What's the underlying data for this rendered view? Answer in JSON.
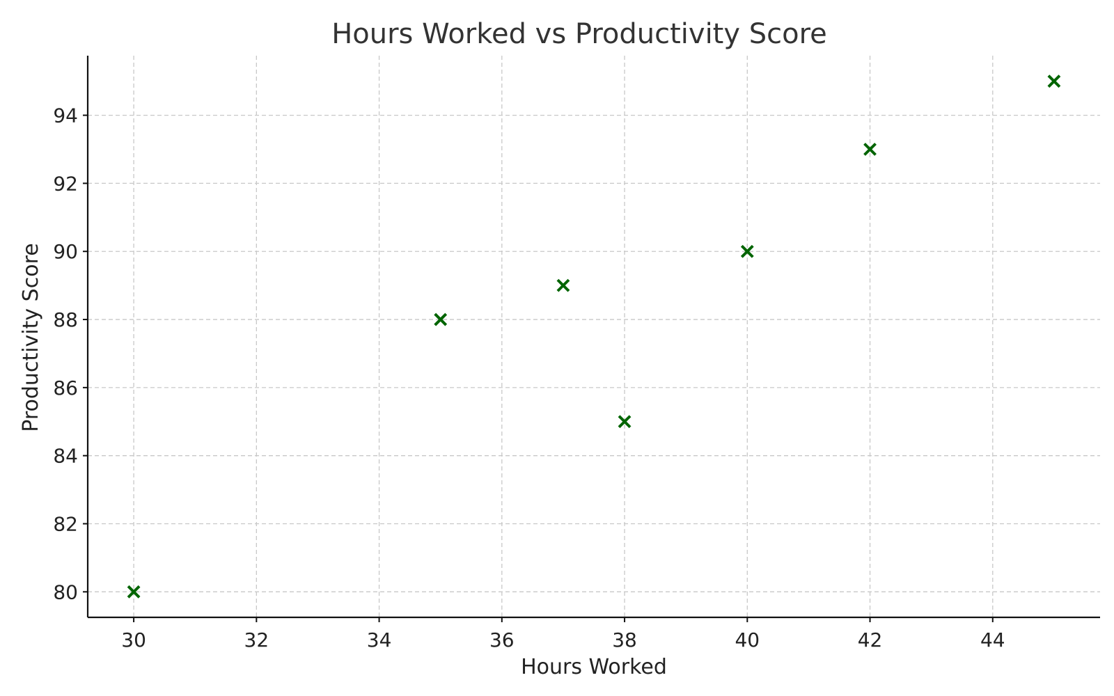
{
  "chart_data": {
    "type": "scatter",
    "title": "Hours Worked vs Productivity Score",
    "xlabel": "Hours Worked",
    "ylabel": "Productivity Score",
    "xlim": [
      29.25,
      45.75
    ],
    "ylim": [
      79.25,
      95.75
    ],
    "xticks": [
      30,
      32,
      34,
      36,
      38,
      40,
      42,
      44
    ],
    "yticks": [
      80,
      82,
      84,
      86,
      88,
      90,
      92,
      94
    ],
    "grid": true,
    "marker": "x",
    "marker_color": "#006400",
    "points": [
      {
        "x": 30,
        "y": 80
      },
      {
        "x": 35,
        "y": 88
      },
      {
        "x": 37,
        "y": 89
      },
      {
        "x": 38,
        "y": 85
      },
      {
        "x": 40,
        "y": 90
      },
      {
        "x": 42,
        "y": 93
      },
      {
        "x": 45,
        "y": 95
      }
    ]
  }
}
